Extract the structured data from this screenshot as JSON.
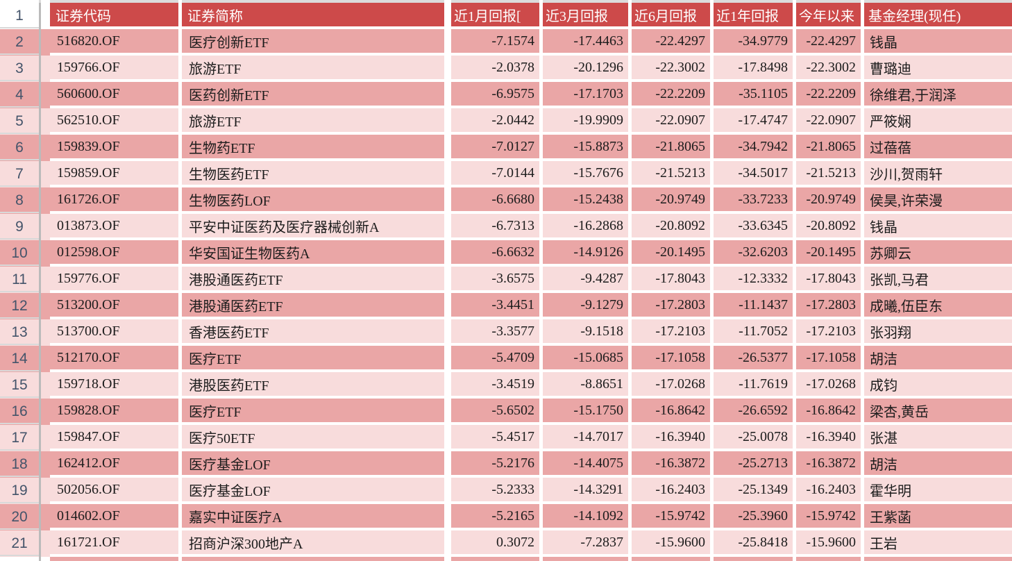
{
  "app": {
    "kind": "spreadsheet",
    "visible_row_numbers_first": "1",
    "visible_row_numbers_last": "21"
  },
  "colors": {
    "header_bg": "#cd4a4a",
    "header_text": "#ffffff",
    "row_dark_bg": "#eaa6a6",
    "row_light_bg": "#f8dcdc",
    "grid_line": "#ffffff",
    "row_number_text": "#44546a",
    "rail_divider": "#bbbbbb"
  },
  "table": {
    "header": {
      "row_num": "1",
      "columns": [
        "证券代码",
        "证券简称",
        "近1月回报[",
        "近3月回报",
        "近6月回报",
        "近1年回报",
        "今年以来",
        "基金经理(现任)"
      ]
    },
    "rows": [
      {
        "row_num": "2",
        "code": "516820.OF",
        "name": "医疗创新ETF",
        "r1m": "-7.1574",
        "r3m": "-17.4463",
        "r6m": "-22.4297",
        "r1y": "-34.9779",
        "ytd": "-22.4297",
        "manager": "钱晶"
      },
      {
        "row_num": "3",
        "code": "159766.OF",
        "name": "旅游ETF",
        "r1m": "-2.0378",
        "r3m": "-20.1296",
        "r6m": "-22.3002",
        "r1y": "-17.8498",
        "ytd": "-22.3002",
        "manager": "曹璐迪"
      },
      {
        "row_num": "4",
        "code": "560600.OF",
        "name": "医药创新ETF",
        "r1m": "-6.9575",
        "r3m": "-17.1703",
        "r6m": "-22.2209",
        "r1y": "-35.1105",
        "ytd": "-22.2209",
        "manager": "徐维君,于润泽"
      },
      {
        "row_num": "5",
        "code": "562510.OF",
        "name": "旅游ETF",
        "r1m": "-2.0442",
        "r3m": "-19.9909",
        "r6m": "-22.0907",
        "r1y": "-17.4747",
        "ytd": "-22.0907",
        "manager": "严筱娴"
      },
      {
        "row_num": "6",
        "code": "159839.OF",
        "name": "生物药ETF",
        "r1m": "-7.0127",
        "r3m": "-15.8873",
        "r6m": "-21.8065",
        "r1y": "-34.7942",
        "ytd": "-21.8065",
        "manager": "过蓓蓓"
      },
      {
        "row_num": "7",
        "code": "159859.OF",
        "name": "生物医药ETF",
        "r1m": "-7.0144",
        "r3m": "-15.7676",
        "r6m": "-21.5213",
        "r1y": "-34.5017",
        "ytd": "-21.5213",
        "manager": "沙川,贺雨轩"
      },
      {
        "row_num": "8",
        "code": "161726.OF",
        "name": "生物医药LOF",
        "r1m": "-6.6680",
        "r3m": "-15.2438",
        "r6m": "-20.9749",
        "r1y": "-33.7233",
        "ytd": "-20.9749",
        "manager": "侯昊,许荣漫"
      },
      {
        "row_num": "9",
        "code": "013873.OF",
        "name": "平安中证医药及医疗器械创新A",
        "r1m": "-6.7313",
        "r3m": "-16.2868",
        "r6m": "-20.8092",
        "r1y": "-33.6345",
        "ytd": "-20.8092",
        "manager": "钱晶"
      },
      {
        "row_num": "10",
        "code": "012598.OF",
        "name": "华安国证生物医药A",
        "r1m": "-6.6632",
        "r3m": "-14.9126",
        "r6m": "-20.1495",
        "r1y": "-32.6203",
        "ytd": "-20.1495",
        "manager": "苏卿云"
      },
      {
        "row_num": "11",
        "code": "159776.OF",
        "name": "港股通医药ETF",
        "r1m": "-3.6575",
        "r3m": "-9.4287",
        "r6m": "-17.8043",
        "r1y": "-12.3332",
        "ytd": "-17.8043",
        "manager": "张凯,马君"
      },
      {
        "row_num": "12",
        "code": "513200.OF",
        "name": "港股通医药ETF",
        "r1m": "-3.4451",
        "r3m": "-9.1279",
        "r6m": "-17.2803",
        "r1y": "-11.1437",
        "ytd": "-17.2803",
        "manager": "成曦,伍臣东"
      },
      {
        "row_num": "13",
        "code": "513700.OF",
        "name": "香港医药ETF",
        "r1m": "-3.3577",
        "r3m": "-9.1518",
        "r6m": "-17.2103",
        "r1y": "-11.7052",
        "ytd": "-17.2103",
        "manager": "张羽翔"
      },
      {
        "row_num": "14",
        "code": "512170.OF",
        "name": "医疗ETF",
        "r1m": "-5.4709",
        "r3m": "-15.0685",
        "r6m": "-17.1058",
        "r1y": "-26.5377",
        "ytd": "-17.1058",
        "manager": "胡洁"
      },
      {
        "row_num": "15",
        "code": "159718.OF",
        "name": "港股医药ETF",
        "r1m": "-3.4519",
        "r3m": "-8.8651",
        "r6m": "-17.0268",
        "r1y": "-11.7619",
        "ytd": "-17.0268",
        "manager": "成钧"
      },
      {
        "row_num": "16",
        "code": "159828.OF",
        "name": "医疗ETF",
        "r1m": "-5.6502",
        "r3m": "-15.1750",
        "r6m": "-16.8642",
        "r1y": "-26.6592",
        "ytd": "-16.8642",
        "manager": "梁杏,黄岳"
      },
      {
        "row_num": "17",
        "code": "159847.OF",
        "name": "医疗50ETF",
        "r1m": "-5.4517",
        "r3m": "-14.7017",
        "r6m": "-16.3940",
        "r1y": "-25.0078",
        "ytd": "-16.3940",
        "manager": "张湛"
      },
      {
        "row_num": "18",
        "code": "162412.OF",
        "name": "医疗基金LOF",
        "r1m": "-5.2176",
        "r3m": "-14.4075",
        "r6m": "-16.3872",
        "r1y": "-25.2713",
        "ytd": "-16.3872",
        "manager": "胡洁"
      },
      {
        "row_num": "19",
        "code": "502056.OF",
        "name": "医疗基金LOF",
        "r1m": "-5.2333",
        "r3m": "-14.3291",
        "r6m": "-16.2403",
        "r1y": "-25.1349",
        "ytd": "-16.2403",
        "manager": "霍华明"
      },
      {
        "row_num": "20",
        "code": "014602.OF",
        "name": "嘉实中证医疗A",
        "r1m": "-5.2165",
        "r3m": "-14.1092",
        "r6m": "-15.9742",
        "r1y": "-25.3960",
        "ytd": "-15.9742",
        "manager": "王紫菡"
      },
      {
        "row_num": "21",
        "code": "161721.OF",
        "name": "招商沪深300地产A",
        "r1m": "0.3072",
        "r3m": "-7.2837",
        "r6m": "-15.9600",
        "r1y": "-25.8418",
        "ytd": "-15.9600",
        "manager": "王岩"
      }
    ]
  }
}
